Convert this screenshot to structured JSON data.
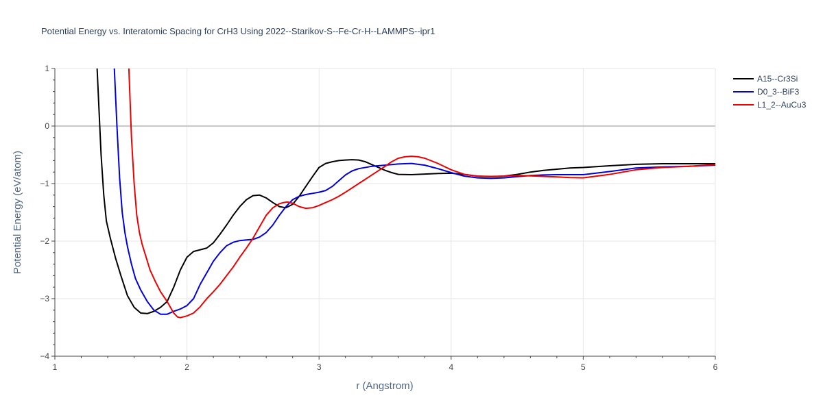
{
  "chart_data": {
    "type": "line",
    "title": "Potential Energy vs. Interatomic Spacing for CrH3 Using 2022--Starikov-S--Fe-Cr-H--LAMMPS--ipr1",
    "xlabel": "r (Angstrom)",
    "ylabel": "Potential Energy (eV/atom)",
    "xlim": [
      1,
      6
    ],
    "ylim": [
      -4,
      1
    ],
    "xticks": [
      "1",
      "2",
      "3",
      "4",
      "5",
      "6"
    ],
    "yticks": [
      "1",
      "0",
      "−1",
      "−2",
      "−3",
      "−4"
    ],
    "grid": true,
    "legend_position": "top-right",
    "series": [
      {
        "name": "A15--Cr3Si",
        "color": "#000000",
        "x": [
          1.32,
          1.35,
          1.37,
          1.39,
          1.42,
          1.46,
          1.5,
          1.55,
          1.6,
          1.65,
          1.7,
          1.75,
          1.8,
          1.85,
          1.9,
          1.95,
          2.0,
          2.05,
          2.1,
          2.15,
          2.2,
          2.25,
          2.3,
          2.35,
          2.4,
          2.45,
          2.5,
          2.55,
          2.6,
          2.65,
          2.7,
          2.75,
          2.8,
          2.85,
          2.9,
          2.95,
          3.0,
          3.05,
          3.1,
          3.15,
          3.2,
          3.25,
          3.3,
          3.35,
          3.4,
          3.45,
          3.5,
          3.55,
          3.6,
          3.7,
          3.8,
          3.9,
          4.0,
          4.1,
          4.2,
          4.3,
          4.4,
          4.5,
          4.6,
          4.7,
          4.8,
          4.9,
          5.0,
          5.2,
          5.4,
          5.6,
          5.8,
          6.0
        ],
        "y": [
          1.0,
          -0.5,
          -1.2,
          -1.65,
          -1.95,
          -2.3,
          -2.6,
          -2.95,
          -3.15,
          -3.25,
          -3.26,
          -3.22,
          -3.15,
          -3.05,
          -2.8,
          -2.5,
          -2.28,
          -2.18,
          -2.15,
          -2.12,
          -2.03,
          -1.88,
          -1.72,
          -1.55,
          -1.4,
          -1.28,
          -1.21,
          -1.2,
          -1.25,
          -1.33,
          -1.4,
          -1.42,
          -1.36,
          -1.22,
          -1.05,
          -0.88,
          -0.72,
          -0.65,
          -0.62,
          -0.6,
          -0.59,
          -0.585,
          -0.59,
          -0.62,
          -0.67,
          -0.72,
          -0.77,
          -0.81,
          -0.84,
          -0.845,
          -0.835,
          -0.825,
          -0.82,
          -0.84,
          -0.87,
          -0.88,
          -0.87,
          -0.84,
          -0.8,
          -0.77,
          -0.75,
          -0.73,
          -0.72,
          -0.69,
          -0.665,
          -0.655,
          -0.655,
          -0.655
        ]
      },
      {
        "name": "D0_3--BiF3",
        "color": "#0000dd",
        "x": [
          1.45,
          1.47,
          1.49,
          1.51,
          1.53,
          1.55,
          1.58,
          1.61,
          1.65,
          1.7,
          1.75,
          1.8,
          1.85,
          1.9,
          1.95,
          2.0,
          2.05,
          2.1,
          2.15,
          2.2,
          2.25,
          2.3,
          2.35,
          2.4,
          2.45,
          2.5,
          2.55,
          2.6,
          2.65,
          2.7,
          2.75,
          2.8,
          2.85,
          2.9,
          2.95,
          3.0,
          3.05,
          3.1,
          3.15,
          3.2,
          3.25,
          3.3,
          3.4,
          3.5,
          3.6,
          3.7,
          3.8,
          3.9,
          4.0,
          4.1,
          4.2,
          4.3,
          4.4,
          4.5,
          4.6,
          4.7,
          4.8,
          4.9,
          5.0,
          5.2,
          5.4,
          5.6,
          5.8,
          6.0
        ],
        "y": [
          1.0,
          0.0,
          -0.9,
          -1.5,
          -1.85,
          -2.1,
          -2.4,
          -2.65,
          -2.85,
          -3.05,
          -3.2,
          -3.27,
          -3.27,
          -3.22,
          -3.18,
          -3.12,
          -3.0,
          -2.75,
          -2.55,
          -2.35,
          -2.2,
          -2.08,
          -2.02,
          -1.99,
          -1.98,
          -1.97,
          -1.93,
          -1.85,
          -1.72,
          -1.55,
          -1.4,
          -1.28,
          -1.22,
          -1.19,
          -1.17,
          -1.15,
          -1.12,
          -1.05,
          -0.95,
          -0.85,
          -0.78,
          -0.74,
          -0.7,
          -0.68,
          -0.66,
          -0.65,
          -0.68,
          -0.74,
          -0.81,
          -0.87,
          -0.9,
          -0.91,
          -0.9,
          -0.88,
          -0.86,
          -0.85,
          -0.845,
          -0.845,
          -0.845,
          -0.79,
          -0.73,
          -0.71,
          -0.7,
          -0.68
        ]
      },
      {
        "name": "L1_2--AuCu3",
        "color": "#ee0000",
        "x": [
          1.56,
          1.58,
          1.6,
          1.62,
          1.64,
          1.66,
          1.68,
          1.72,
          1.76,
          1.8,
          1.85,
          1.9,
          1.93,
          1.95,
          2.0,
          2.05,
          2.1,
          2.15,
          2.2,
          2.25,
          2.3,
          2.35,
          2.4,
          2.45,
          2.5,
          2.55,
          2.6,
          2.65,
          2.7,
          2.73,
          2.76,
          2.8,
          2.85,
          2.9,
          2.95,
          3.0,
          3.05,
          3.1,
          3.15,
          3.2,
          3.3,
          3.4,
          3.5,
          3.55,
          3.6,
          3.65,
          3.7,
          3.75,
          3.8,
          3.9,
          4.0,
          4.1,
          4.2,
          4.3,
          4.4,
          4.5,
          4.6,
          4.7,
          4.8,
          4.9,
          5.0,
          5.2,
          5.4,
          5.6,
          5.8,
          6.0
        ],
        "y": [
          1.0,
          -0.2,
          -1.0,
          -1.55,
          -1.85,
          -2.05,
          -2.2,
          -2.5,
          -2.7,
          -2.88,
          -3.05,
          -3.25,
          -3.32,
          -3.33,
          -3.3,
          -3.25,
          -3.14,
          -3.0,
          -2.88,
          -2.75,
          -2.6,
          -2.45,
          -2.28,
          -2.12,
          -1.95,
          -1.75,
          -1.55,
          -1.42,
          -1.35,
          -1.33,
          -1.32,
          -1.34,
          -1.4,
          -1.43,
          -1.42,
          -1.38,
          -1.33,
          -1.28,
          -1.22,
          -1.15,
          -1.0,
          -0.85,
          -0.7,
          -0.62,
          -0.56,
          -0.535,
          -0.525,
          -0.535,
          -0.56,
          -0.65,
          -0.76,
          -0.84,
          -0.87,
          -0.875,
          -0.87,
          -0.86,
          -0.865,
          -0.875,
          -0.885,
          -0.895,
          -0.9,
          -0.84,
          -0.76,
          -0.72,
          -0.7,
          -0.67
        ]
      }
    ]
  }
}
